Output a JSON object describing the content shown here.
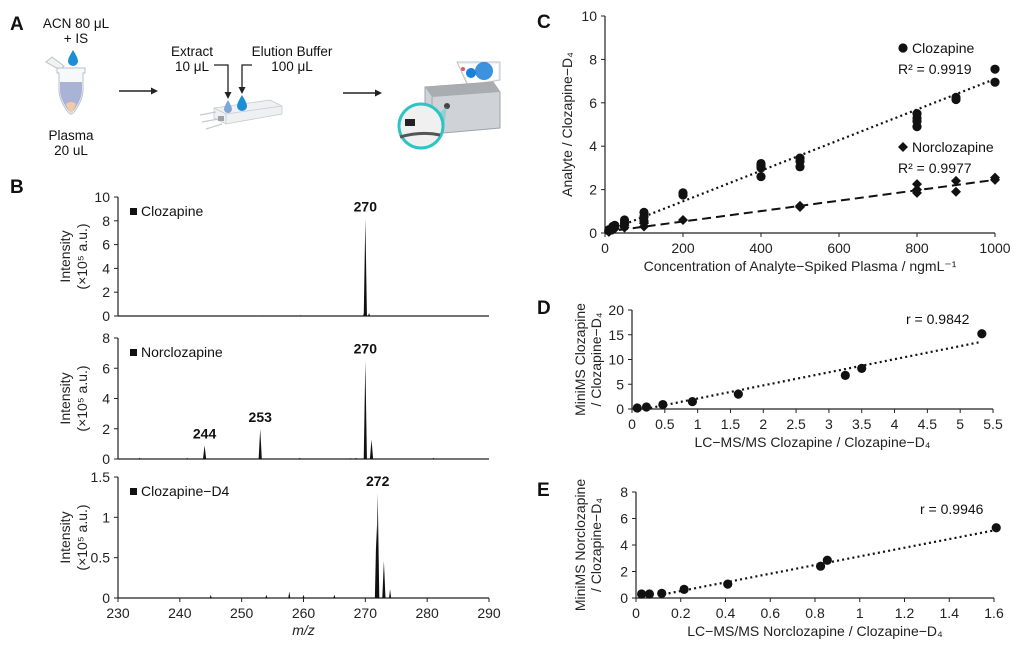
{
  "panelA": {
    "letter": "A",
    "step1": {
      "reagent_line1": "ACN 80 μL",
      "reagent_line2": "+ IS",
      "sample_line1": "Plasma",
      "sample_line2": "20 uL"
    },
    "step2": {
      "extract_line1": "Extract",
      "extract_line2": "10 μL",
      "buffer_line1": "Elution Buffer",
      "buffer_line2": "100 μL"
    },
    "colors": {
      "droplet": "#1a8fd6",
      "tube_liquid": "#a9b3d6",
      "tube_tip": "#f3caa6",
      "magnifier": "#2ec4c4",
      "screen_blob": "#1a7fd6"
    }
  },
  "chart_data": [
    {
      "id": "B1",
      "panel_letter": "B",
      "type": "bar",
      "title": "Clozapine",
      "xlabel": "m/z",
      "ylabel_line1": "Intensity",
      "ylabel_line2": "(×10⁵ a.u.)",
      "xlim": [
        230,
        290
      ],
      "ylim": [
        0,
        10
      ],
      "yticks": [
        0,
        2,
        4,
        6,
        8,
        10
      ],
      "xticks": [],
      "peaks": [
        {
          "mz": 270,
          "intensity": 8.2,
          "label": "270"
        },
        {
          "mz": 269.8,
          "intensity": 0.3
        },
        {
          "mz": 253.5,
          "intensity": 0.05
        },
        {
          "mz": 259.5,
          "intensity": 0.07
        },
        {
          "mz": 270.6,
          "intensity": 0.25
        }
      ]
    },
    {
      "id": "B2",
      "type": "bar",
      "title": "Norclozapine",
      "xlabel": "m/z",
      "ylabel_line1": "Intensity",
      "ylabel_line2": "(×10⁵ a.u.)",
      "xlim": [
        230,
        290
      ],
      "ylim": [
        0,
        8
      ],
      "yticks": [
        0,
        2,
        4,
        6,
        8
      ],
      "xticks": [],
      "peaks": [
        {
          "mz": 244,
          "intensity": 0.9,
          "label": "244"
        },
        {
          "mz": 253,
          "intensity": 2.0,
          "label": "253"
        },
        {
          "mz": 270,
          "intensity": 6.5,
          "label": "270"
        },
        {
          "mz": 271,
          "intensity": 1.3
        },
        {
          "mz": 233.5,
          "intensity": 0.08
        },
        {
          "mz": 241.2,
          "intensity": 0.08
        },
        {
          "mz": 259.4,
          "intensity": 0.08
        },
        {
          "mz": 267.6,
          "intensity": 0.06
        },
        {
          "mz": 268.5,
          "intensity": 0.08
        },
        {
          "mz": 281,
          "intensity": 0.08
        }
      ]
    },
    {
      "id": "B3",
      "type": "bar",
      "title": "Clozapine−D4",
      "xlabel": "m/z",
      "ylabel_line1": "Intensity",
      "ylabel_line2": "(×10⁵ a.u.)",
      "xlim": [
        230,
        290
      ],
      "ylim": [
        0,
        1.5
      ],
      "yticks": [
        0,
        0.5,
        1,
        1.5
      ],
      "ytick_labels": [
        "0",
        "0.5",
        "1",
        "1.5"
      ],
      "xticks": [
        230,
        240,
        250,
        260,
        270,
        280,
        290
      ],
      "peaks": [
        {
          "mz": 272,
          "intensity": 1.3,
          "label": "272"
        },
        {
          "mz": 271.8,
          "intensity": 0.9
        },
        {
          "mz": 273,
          "intensity": 0.46
        },
        {
          "mz": 274,
          "intensity": 0.11
        },
        {
          "mz": 245,
          "intensity": 0.04
        },
        {
          "mz": 254,
          "intensity": 0.04
        },
        {
          "mz": 257.7,
          "intensity": 0.08
        },
        {
          "mz": 260,
          "intensity": 0.04
        },
        {
          "mz": 265,
          "intensity": 0.04
        }
      ]
    },
    {
      "id": "C",
      "panel_letter": "C",
      "type": "scatter",
      "xlabel": "Concentration of Analyte−Spiked Plasma / ngmL⁻¹",
      "ylabel": "Analyte / Clozapine−D₄",
      "xlim": [
        0,
        1000
      ],
      "ylim": [
        0,
        10
      ],
      "xticks": [
        0,
        200,
        400,
        600,
        800,
        1000
      ],
      "yticks": [
        0,
        2,
        4,
        6,
        8,
        10
      ],
      "grid": false,
      "legend_position": "top-right (inline)",
      "series": [
        {
          "name": "Clozapine",
          "marker": "circle",
          "r2_label": "R² = 0.9919",
          "trendline": {
            "style": "dotted",
            "x": [
              0,
              1000
            ],
            "y": [
              0.05,
              7.1
            ]
          },
          "points": [
            [
              10,
              0.1
            ],
            [
              10,
              0.15
            ],
            [
              20,
              0.2
            ],
            [
              20,
              0.3
            ],
            [
              25,
              0.35
            ],
            [
              50,
              0.45
            ],
            [
              50,
              0.6
            ],
            [
              100,
              0.55
            ],
            [
              100,
              0.75
            ],
            [
              100,
              0.95
            ],
            [
              200,
              1.75
            ],
            [
              200,
              1.85
            ],
            [
              400,
              2.6
            ],
            [
              400,
              3.0
            ],
            [
              400,
              3.1
            ],
            [
              400,
              3.2
            ],
            [
              500,
              3.05
            ],
            [
              500,
              3.3
            ],
            [
              500,
              3.45
            ],
            [
              800,
              4.9
            ],
            [
              800,
              5.15
            ],
            [
              800,
              5.3
            ],
            [
              800,
              5.5
            ],
            [
              900,
              6.15
            ],
            [
              900,
              6.25
            ],
            [
              1000,
              6.95
            ],
            [
              1000,
              7.55
            ]
          ]
        },
        {
          "name": "Norclozapine",
          "marker": "diamond",
          "r2_label": "R² = 0.9977",
          "trendline": {
            "style": "dashed",
            "x": [
              0,
              1000
            ],
            "y": [
              0.05,
              2.45
            ]
          },
          "points": [
            [
              10,
              0.05
            ],
            [
              10,
              0.1
            ],
            [
              20,
              0.15
            ],
            [
              25,
              0.2
            ],
            [
              50,
              0.25
            ],
            [
              50,
              0.35
            ],
            [
              100,
              0.3
            ],
            [
              100,
              0.45
            ],
            [
              200,
              0.6
            ],
            [
              500,
              1.2
            ],
            [
              500,
              1.25
            ],
            [
              800,
              1.85
            ],
            [
              800,
              2.0
            ],
            [
              800,
              2.25
            ],
            [
              900,
              1.9
            ],
            [
              900,
              2.4
            ],
            [
              1000,
              2.45
            ],
            [
              1000,
              2.55
            ]
          ]
        }
      ]
    },
    {
      "id": "D",
      "panel_letter": "D",
      "type": "scatter",
      "xlabel": "LC−MS/MS Clozapine / Clozapine−D₄",
      "ylabel_line1": "MiniMS Clozapine",
      "ylabel_line2": "/ Clozapine−D₄",
      "xlim": [
        0,
        5.5
      ],
      "ylim": [
        0,
        20
      ],
      "xticks": [
        0,
        0.5,
        1,
        1.5,
        2,
        2.5,
        3,
        3.5,
        4,
        4.5,
        5,
        5.5
      ],
      "yticks": [
        0,
        5,
        10,
        15,
        20
      ],
      "annotation": "r = 0.9842",
      "trendline": {
        "style": "dotted",
        "x": [
          0.2,
          5.3
        ],
        "y": [
          0.0,
          13.5
        ]
      },
      "points": [
        [
          0.08,
          0.2
        ],
        [
          0.22,
          0.4
        ],
        [
          0.47,
          0.9
        ],
        [
          0.92,
          1.5
        ],
        [
          1.62,
          3.0
        ],
        [
          3.25,
          6.8
        ],
        [
          3.5,
          8.2
        ],
        [
          5.33,
          15.2
        ]
      ]
    },
    {
      "id": "E",
      "panel_letter": "E",
      "type": "scatter",
      "xlabel": "LC−MS/MS Norclozapine / Clozapine−D₄",
      "ylabel_line1": "MiniMS Norclozapine",
      "ylabel_line2": "/ Clozapine−D₄",
      "xlim": [
        0,
        1.6
      ],
      "ylim": [
        0,
        8
      ],
      "xticks": [
        0,
        0.2,
        0.4,
        0.6,
        0.8,
        1,
        1.2,
        1.4,
        1.6
      ],
      "yticks": [
        0,
        2,
        4,
        6,
        8
      ],
      "annotation": "r = 0.9946",
      "trendline": {
        "style": "dotted",
        "x": [
          0.1,
          1.6
        ],
        "y": [
          0.2,
          5.1
        ]
      },
      "points": [
        [
          0.025,
          0.3
        ],
        [
          0.06,
          0.3
        ],
        [
          0.115,
          0.35
        ],
        [
          0.215,
          0.65
        ],
        [
          0.41,
          1.05
        ],
        [
          0.825,
          2.4
        ],
        [
          0.855,
          2.85
        ],
        [
          1.61,
          5.3
        ]
      ]
    }
  ]
}
